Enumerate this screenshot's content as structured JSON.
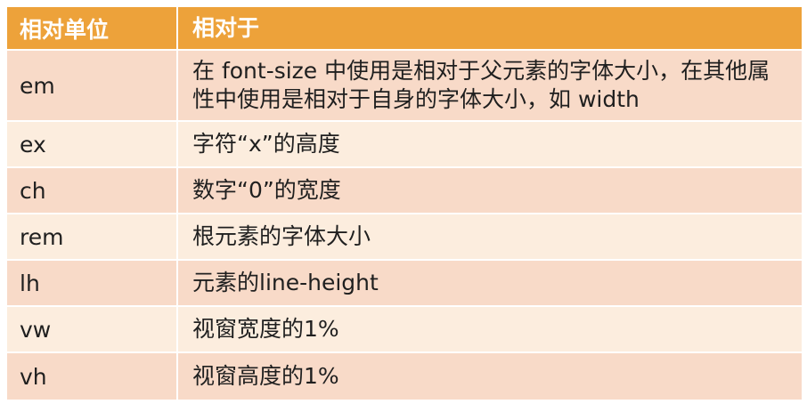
{
  "table": {
    "headers": [
      "相对单位",
      "相对于"
    ],
    "rows": [
      {
        "unit": "em",
        "desc": "在 font-size 中使用是相对于父元素的字体大小，在其他属性中使用是相对于自身的字体大小，如 width"
      },
      {
        "unit": "ex",
        "desc": "字符“x”的高度"
      },
      {
        "unit": "ch",
        "desc": "数字“0”的宽度"
      },
      {
        "unit": "rem",
        "desc": "根元素的字体大小"
      },
      {
        "unit": "lh",
        "desc": "元素的line-height"
      },
      {
        "unit": "vw",
        "desc": "视窗宽度的1%"
      },
      {
        "unit": "vh",
        "desc": "视窗高度的1%"
      }
    ]
  },
  "colors": {
    "header_bg": "#eda23a",
    "row_odd_bg": "#f8dac8",
    "row_even_bg": "#fcedde"
  }
}
